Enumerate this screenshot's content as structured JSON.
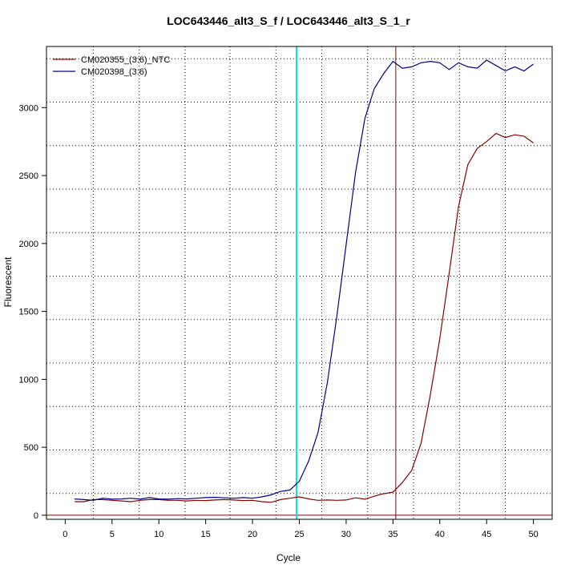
{
  "chart_data": {
    "type": "line",
    "title": "LOC643446_alt3_S_f / LOC643446_alt3_S_1_r",
    "xlabel": "Cycle",
    "ylabel": "Fluorescent",
    "xlim": [
      -2,
      52
    ],
    "ylim": [
      -30,
      3450
    ],
    "xticks": [
      0,
      5,
      10,
      15,
      20,
      25,
      30,
      35,
      40,
      45,
      50
    ],
    "yticks": [
      0,
      500,
      1000,
      1500,
      2000,
      2500,
      3000
    ],
    "x_grid_dotted": [
      3,
      7.9,
      12.8,
      17.6,
      22.5,
      27.4,
      32.3,
      37.2,
      42.1,
      47
    ],
    "y_grid_dotted": [
      160,
      480,
      800,
      1120,
      1440,
      1760,
      2080,
      2400,
      2720,
      3040,
      3360
    ],
    "threshold_y": 0,
    "threshold_color": "#8b0000",
    "cycle_lines": [
      {
        "x": 24.7,
        "color": "#00e5ee"
      },
      {
        "x": 35.3,
        "color": "#8b0000"
      }
    ],
    "legend_position": "top-left",
    "series": [
      {
        "name": "CM020355_(3:6)_NTC",
        "color": "#8b0000",
        "x": [
          1,
          2,
          3,
          4,
          5,
          6,
          7,
          8,
          9,
          10,
          11,
          12,
          13,
          14,
          15,
          16,
          17,
          18,
          19,
          20,
          21,
          22,
          23,
          24,
          25,
          26,
          27,
          28,
          29,
          30,
          31,
          32,
          33,
          34,
          35,
          36,
          37,
          38,
          39,
          40,
          41,
          42,
          43,
          44,
          45,
          46,
          47,
          48,
          49,
          50
        ],
        "values": [
          100,
          100,
          115,
          115,
          110,
          105,
          100,
          110,
          115,
          115,
          110,
          110,
          105,
          110,
          108,
          112,
          115,
          112,
          108,
          110,
          100,
          95,
          115,
          125,
          135,
          120,
          110,
          112,
          110,
          112,
          128,
          118,
          140,
          158,
          170,
          240,
          330,
          530,
          890,
          1300,
          1780,
          2270,
          2580,
          2700,
          2750,
          2810,
          2780,
          2800,
          2790,
          2740
        ]
      },
      {
        "name": "CM020398_(3:6)",
        "color": "#00008b",
        "x": [
          1,
          2,
          3,
          4,
          5,
          6,
          7,
          8,
          9,
          10,
          11,
          12,
          13,
          14,
          15,
          16,
          17,
          18,
          19,
          20,
          21,
          22,
          23,
          24,
          25,
          26,
          27,
          28,
          29,
          30,
          31,
          32,
          33,
          34,
          35,
          36,
          37,
          38,
          39,
          40,
          41,
          42,
          43,
          44,
          45,
          46,
          47,
          48,
          49,
          50
        ],
        "values": [
          120,
          115,
          110,
          125,
          118,
          120,
          125,
          118,
          130,
          120,
          118,
          122,
          120,
          125,
          130,
          132,
          128,
          125,
          130,
          125,
          135,
          150,
          175,
          185,
          250,
          400,
          610,
          980,
          1460,
          1990,
          2520,
          2920,
          3140,
          3250,
          3340,
          3290,
          3300,
          3330,
          3340,
          3330,
          3280,
          3330,
          3300,
          3290,
          3350,
          3310,
          3270,
          3300,
          3270,
          3320
        ]
      }
    ]
  }
}
